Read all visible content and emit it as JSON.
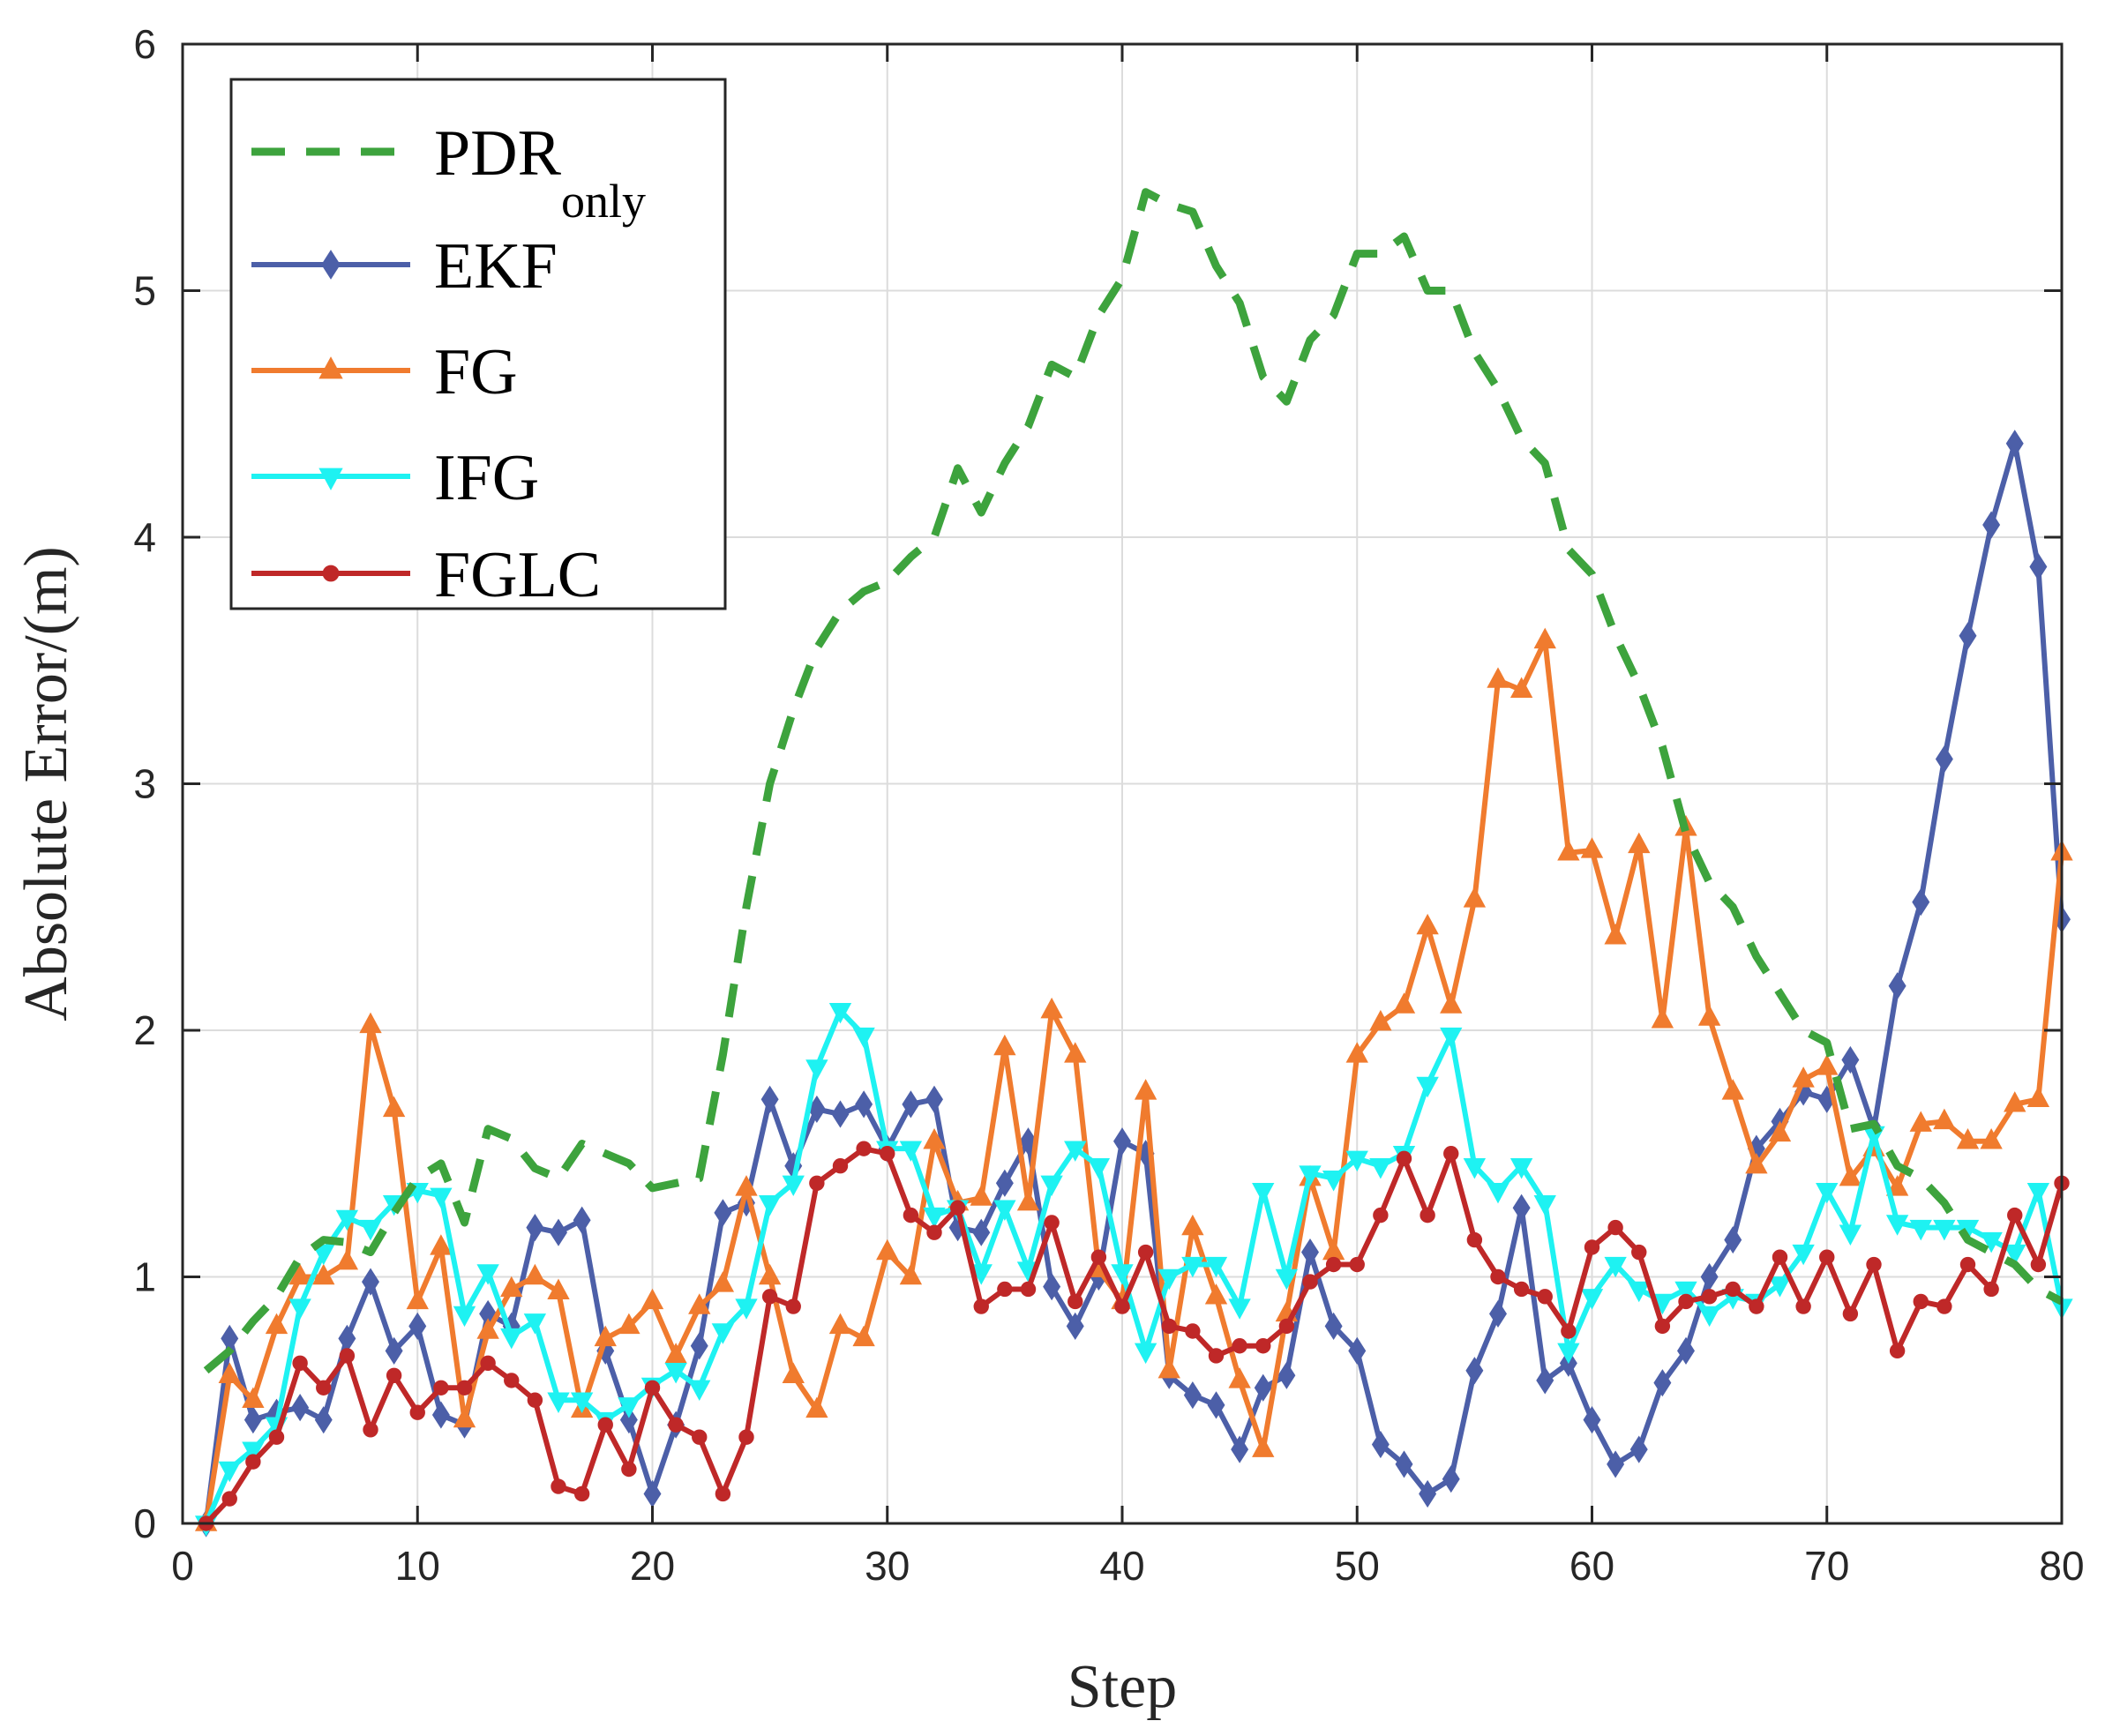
{
  "chart_data": {
    "type": "line",
    "title": "",
    "xlabel": "Step",
    "ylabel": "Absolute Error/(m)",
    "xlim": [
      0,
      80
    ],
    "ylim": [
      0,
      6
    ],
    "xticks": [
      0,
      10,
      20,
      30,
      40,
      50,
      60,
      70,
      80
    ],
    "yticks": [
      0,
      1,
      2,
      3,
      4,
      5,
      6
    ],
    "grid": true,
    "legend_position": "top-left",
    "x": [
      1,
      2,
      3,
      4,
      5,
      6,
      7,
      8,
      9,
      10,
      11,
      12,
      13,
      14,
      15,
      16,
      17,
      18,
      19,
      20,
      21,
      22,
      23,
      24,
      25,
      26,
      27,
      28,
      29,
      30,
      31,
      32,
      33,
      34,
      35,
      36,
      37,
      38,
      39,
      40,
      41,
      42,
      43,
      44,
      45,
      46,
      47,
      48,
      49,
      50,
      51,
      52,
      53,
      54,
      55,
      56,
      57,
      58,
      59,
      60,
      61,
      62,
      63,
      64,
      65,
      66,
      67,
      68,
      69,
      70,
      71,
      72,
      73,
      74,
      75,
      76,
      77,
      78,
      79,
      80
    ],
    "series": [
      {
        "name": "PDR",
        "name_subscript": "only",
        "color": "#3DA33D",
        "style": "dashed",
        "marker": "none",
        "values": [
          0.62,
          0.7,
          0.82,
          0.92,
          1.08,
          1.15,
          1.14,
          1.1,
          1.26,
          1.4,
          1.46,
          1.22,
          1.6,
          1.56,
          1.44,
          1.4,
          1.54,
          1.5,
          1.46,
          1.36,
          1.38,
          1.4,
          1.9,
          2.5,
          3.0,
          3.3,
          3.55,
          3.7,
          3.78,
          3.82,
          3.92,
          4.0,
          4.28,
          4.1,
          4.3,
          4.45,
          4.7,
          4.65,
          4.9,
          5.05,
          5.4,
          5.35,
          5.32,
          5.1,
          4.95,
          4.65,
          4.55,
          4.8,
          4.9,
          5.15,
          5.15,
          5.22,
          5.0,
          5.0,
          4.75,
          4.6,
          4.4,
          4.3,
          3.95,
          3.85,
          3.6,
          3.4,
          3.15,
          2.8,
          2.6,
          2.5,
          2.3,
          2.15,
          2.0,
          1.95,
          1.6,
          1.62,
          1.45,
          1.4,
          1.3,
          1.15,
          1.1,
          1.05,
          0.95,
          0.9
        ]
      },
      {
        "name": "EKF",
        "color": "#4C5FA8",
        "style": "solid",
        "marker": "diamond",
        "values": [
          0.0,
          0.75,
          0.42,
          0.45,
          0.47,
          0.42,
          0.75,
          0.98,
          0.7,
          0.8,
          0.44,
          0.4,
          0.85,
          0.8,
          1.2,
          1.18,
          1.23,
          0.7,
          0.42,
          0.12,
          0.4,
          0.72,
          1.26,
          1.3,
          1.72,
          1.45,
          1.68,
          1.66,
          1.7,
          1.52,
          1.7,
          1.72,
          1.2,
          1.18,
          1.38,
          1.55,
          0.96,
          0.8,
          1.0,
          1.55,
          1.5,
          0.6,
          0.52,
          0.48,
          0.3,
          0.55,
          0.6,
          1.1,
          0.8,
          0.7,
          0.32,
          0.24,
          0.12,
          0.18,
          0.62,
          0.85,
          1.28,
          0.58,
          0.65,
          0.42,
          0.24,
          0.3,
          0.57,
          0.7,
          1.0,
          1.15,
          1.52,
          1.63,
          1.75,
          1.72,
          1.88,
          1.6,
          2.18,
          2.52,
          3.1,
          3.6,
          4.05,
          4.38,
          3.88,
          2.45
        ]
      },
      {
        "name": "FG",
        "color": "#F07B2E",
        "style": "solid",
        "marker": "triangle-up",
        "values": [
          0.0,
          0.6,
          0.5,
          0.8,
          1.0,
          1.0,
          1.06,
          2.02,
          1.68,
          0.9,
          1.12,
          0.42,
          0.78,
          0.95,
          1.0,
          0.94,
          0.46,
          0.75,
          0.8,
          0.9,
          0.68,
          0.88,
          0.97,
          1.36,
          1.0,
          0.6,
          0.46,
          0.8,
          0.75,
          1.1,
          1.0,
          1.55,
          1.3,
          1.32,
          1.93,
          1.3,
          2.08,
          1.9,
          1.03,
          0.9,
          1.75,
          0.62,
          1.2,
          0.92,
          0.58,
          0.3,
          0.85,
          1.4,
          1.1,
          1.9,
          2.03,
          2.1,
          2.42,
          2.1,
          2.53,
          3.42,
          3.38,
          3.58,
          2.72,
          2.73,
          2.38,
          2.75,
          2.04,
          2.82,
          2.05,
          1.75,
          1.45,
          1.58,
          1.8,
          1.85,
          1.4,
          1.52,
          1.36,
          1.62,
          1.63,
          1.55,
          1.55,
          1.7,
          1.72,
          2.72
        ]
      },
      {
        "name": "IFG",
        "color": "#1EF2F2",
        "style": "solid",
        "marker": "triangle-down",
        "values": [
          0.0,
          0.22,
          0.3,
          0.4,
          0.88,
          1.1,
          1.24,
          1.2,
          1.3,
          1.35,
          1.33,
          0.85,
          1.02,
          0.76,
          0.82,
          0.5,
          0.5,
          0.42,
          0.48,
          0.56,
          0.62,
          0.55,
          0.78,
          0.88,
          1.3,
          1.38,
          1.85,
          2.08,
          1.98,
          1.52,
          1.52,
          1.25,
          1.28,
          1.02,
          1.28,
          1.03,
          1.38,
          1.52,
          1.45,
          1.02,
          0.7,
          1.0,
          1.05,
          1.05,
          0.88,
          1.35,
          1.0,
          1.42,
          1.4,
          1.48,
          1.45,
          1.5,
          1.78,
          1.98,
          1.45,
          1.35,
          1.45,
          1.3,
          0.7,
          0.92,
          1.05,
          0.95,
          0.9,
          0.95,
          0.85,
          0.92,
          0.9,
          0.97,
          1.1,
          1.35,
          1.18,
          1.58,
          1.22,
          1.2,
          1.2,
          1.2,
          1.15,
          1.1,
          1.35,
          0.88
        ]
      },
      {
        "name": "FGLC",
        "color": "#BF2828",
        "style": "solid",
        "marker": "circle",
        "values": [
          0.0,
          0.1,
          0.25,
          0.35,
          0.65,
          0.55,
          0.68,
          0.38,
          0.6,
          0.45,
          0.55,
          0.55,
          0.65,
          0.58,
          0.5,
          0.15,
          0.12,
          0.4,
          0.22,
          0.55,
          0.4,
          0.35,
          0.12,
          0.35,
          0.92,
          0.88,
          1.38,
          1.45,
          1.52,
          1.5,
          1.25,
          1.18,
          1.28,
          0.88,
          0.95,
          0.95,
          1.22,
          0.9,
          1.08,
          0.88,
          1.1,
          0.8,
          0.78,
          0.68,
          0.72,
          0.72,
          0.8,
          0.98,
          1.05,
          1.05,
          1.25,
          1.48,
          1.25,
          1.5,
          1.15,
          1.0,
          0.95,
          0.92,
          0.78,
          1.12,
          1.2,
          1.1,
          0.8,
          0.9,
          0.92,
          0.95,
          0.88,
          1.08,
          0.88,
          1.08,
          0.85,
          1.05,
          0.7,
          0.9,
          0.88,
          1.05,
          0.95,
          1.25,
          1.05,
          1.38
        ]
      }
    ]
  }
}
